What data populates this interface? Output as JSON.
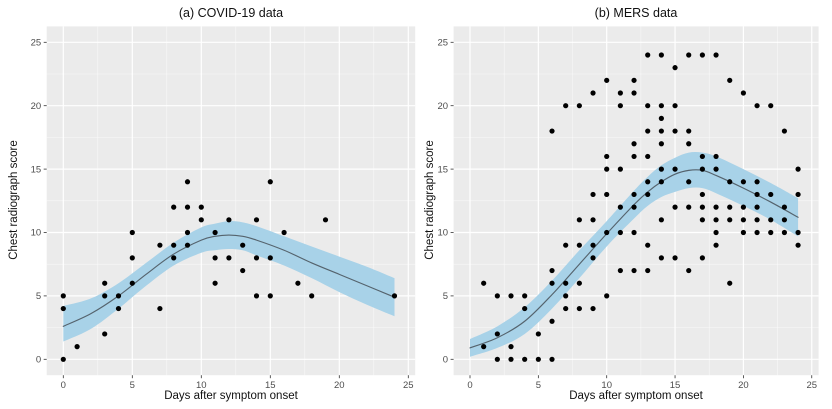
{
  "figure": {
    "background": "#ffffff"
  },
  "chart_data": [
    {
      "id": "covid",
      "type": "scatter",
      "title": "(a) COVID-19 data",
      "xlabel": "Days after symptom onset",
      "ylabel": "Chest radiograph score",
      "xlim": [
        -1.2,
        25.5
      ],
      "ylim": [
        -1.25,
        26.25
      ],
      "xticks": [
        0,
        5,
        10,
        15,
        20,
        25
      ],
      "yticks": [
        0,
        5,
        10,
        15,
        20,
        25
      ],
      "grid": "white major and minor on gray panel",
      "legend": "none",
      "panel_bg": "#ebebeb",
      "grid_color": "#ffffff",
      "point_color": "#000000",
      "smooth_line_color": "#55636d",
      "ribbon_color": "#a8d2e8",
      "points": [
        [
          0,
          0
        ],
        [
          0,
          4
        ],
        [
          0,
          5
        ],
        [
          1,
          1
        ],
        [
          3,
          2
        ],
        [
          3,
          5
        ],
        [
          3,
          6
        ],
        [
          4,
          4
        ],
        [
          4,
          5
        ],
        [
          5,
          6
        ],
        [
          5,
          8
        ],
        [
          5,
          10
        ],
        [
          7,
          4
        ],
        [
          7,
          9
        ],
        [
          8,
          8
        ],
        [
          8,
          9
        ],
        [
          8,
          12
        ],
        [
          9,
          9
        ],
        [
          9,
          10
        ],
        [
          9,
          12
        ],
        [
          9,
          14
        ],
        [
          10,
          11
        ],
        [
          10,
          12
        ],
        [
          11,
          6
        ],
        [
          11,
          8
        ],
        [
          11,
          10
        ],
        [
          12,
          8
        ],
        [
          12,
          11
        ],
        [
          13,
          7
        ],
        [
          13,
          9
        ],
        [
          14,
          5
        ],
        [
          14,
          8
        ],
        [
          14,
          11
        ],
        [
          15,
          5
        ],
        [
          15,
          8
        ],
        [
          15,
          14
        ],
        [
          16,
          10
        ],
        [
          17,
          6
        ],
        [
          18,
          5
        ],
        [
          19,
          11
        ],
        [
          24,
          5
        ]
      ],
      "smooth": {
        "x": [
          0,
          2,
          4,
          6,
          8,
          10,
          11,
          12,
          13,
          14,
          16,
          18,
          20,
          22,
          24
        ],
        "line": [
          2.6,
          3.6,
          5.0,
          6.7,
          8.3,
          9.4,
          9.7,
          9.8,
          9.7,
          9.4,
          8.6,
          7.6,
          6.7,
          5.8,
          4.9
        ],
        "upper": [
          4.2,
          4.8,
          6.0,
          7.6,
          9.2,
          10.4,
          10.7,
          10.9,
          10.8,
          10.5,
          9.7,
          8.9,
          8.1,
          7.3,
          6.4
        ],
        "lower": [
          1.4,
          2.4,
          4.0,
          5.8,
          7.4,
          8.4,
          8.6,
          8.7,
          8.6,
          8.2,
          7.4,
          6.4,
          5.3,
          4.3,
          3.4
        ]
      }
    },
    {
      "id": "mers",
      "type": "scatter",
      "title": "(b) MERS data",
      "xlabel": "Days after symptom onset",
      "ylabel": "Chest radiograph score",
      "xlim": [
        -1.2,
        25.5
      ],
      "ylim": [
        -1.25,
        26.25
      ],
      "xticks": [
        0,
        5,
        10,
        15,
        20,
        25
      ],
      "yticks": [
        0,
        5,
        10,
        15,
        20,
        25
      ],
      "grid": "white major and minor on gray panel",
      "legend": "none",
      "panel_bg": "#ebebeb",
      "grid_color": "#ffffff",
      "point_color": "#000000",
      "smooth_line_color": "#55636d",
      "ribbon_color": "#a8d2e8",
      "points": [
        [
          2,
          0
        ],
        [
          3,
          0
        ],
        [
          4,
          0
        ],
        [
          5,
          0
        ],
        [
          6,
          0
        ],
        [
          1,
          1
        ],
        [
          3,
          1
        ],
        [
          2,
          2
        ],
        [
          5,
          2
        ],
        [
          6,
          3
        ],
        [
          4,
          4
        ],
        [
          7,
          4
        ],
        [
          8,
          4
        ],
        [
          9,
          4
        ],
        [
          2,
          5
        ],
        [
          3,
          5
        ],
        [
          4,
          5
        ],
        [
          7,
          5
        ],
        [
          10,
          5
        ],
        [
          1,
          6
        ],
        [
          6,
          6
        ],
        [
          7,
          6
        ],
        [
          8,
          6
        ],
        [
          19,
          6
        ],
        [
          6,
          7
        ],
        [
          11,
          7
        ],
        [
          12,
          7
        ],
        [
          13,
          7
        ],
        [
          16,
          7
        ],
        [
          9,
          8
        ],
        [
          14,
          8
        ],
        [
          15,
          8
        ],
        [
          17,
          8
        ],
        [
          7,
          9
        ],
        [
          8,
          9
        ],
        [
          9,
          9
        ],
        [
          13,
          9
        ],
        [
          18,
          9
        ],
        [
          24,
          9
        ],
        [
          10,
          10
        ],
        [
          11,
          10
        ],
        [
          12,
          10
        ],
        [
          18,
          10
        ],
        [
          20,
          10
        ],
        [
          21,
          10
        ],
        [
          22,
          10
        ],
        [
          23,
          10
        ],
        [
          24,
          10
        ],
        [
          8,
          11
        ],
        [
          9,
          11
        ],
        [
          14,
          11
        ],
        [
          17,
          11
        ],
        [
          18,
          11
        ],
        [
          19,
          11
        ],
        [
          20,
          11
        ],
        [
          21,
          11
        ],
        [
          22,
          11
        ],
        [
          23,
          11
        ],
        [
          11,
          12
        ],
        [
          12,
          12
        ],
        [
          15,
          12
        ],
        [
          16,
          12
        ],
        [
          17,
          12
        ],
        [
          18,
          12
        ],
        [
          19,
          12
        ],
        [
          20,
          12
        ],
        [
          21,
          12
        ],
        [
          23,
          12
        ],
        [
          9,
          13
        ],
        [
          10,
          13
        ],
        [
          12,
          13
        ],
        [
          13,
          13
        ],
        [
          17,
          13
        ],
        [
          21,
          13
        ],
        [
          22,
          13
        ],
        [
          24,
          13
        ],
        [
          13,
          14
        ],
        [
          14,
          14
        ],
        [
          16,
          14
        ],
        [
          19,
          14
        ],
        [
          20,
          14
        ],
        [
          21,
          14
        ],
        [
          10,
          15
        ],
        [
          11,
          15
        ],
        [
          14,
          15
        ],
        [
          15,
          15
        ],
        [
          17,
          15
        ],
        [
          18,
          15
        ],
        [
          24,
          15
        ],
        [
          10,
          16
        ],
        [
          12,
          16
        ],
        [
          13,
          16
        ],
        [
          17,
          16
        ],
        [
          18,
          16
        ],
        [
          12,
          17
        ],
        [
          14,
          17
        ],
        [
          16,
          17
        ],
        [
          6,
          18
        ],
        [
          13,
          18
        ],
        [
          14,
          18
        ],
        [
          15,
          18
        ],
        [
          16,
          18
        ],
        [
          23,
          18
        ],
        [
          14,
          19
        ],
        [
          7,
          20
        ],
        [
          8,
          20
        ],
        [
          11,
          20
        ],
        [
          13,
          20
        ],
        [
          14,
          20
        ],
        [
          15,
          20
        ],
        [
          21,
          20
        ],
        [
          22,
          20
        ],
        [
          9,
          21
        ],
        [
          11,
          21
        ],
        [
          12,
          21
        ],
        [
          20,
          21
        ],
        [
          10,
          22
        ],
        [
          12,
          22
        ],
        [
          19,
          22
        ],
        [
          15,
          23
        ],
        [
          13,
          24
        ],
        [
          14,
          24
        ],
        [
          16,
          24
        ],
        [
          17,
          24
        ],
        [
          18,
          24
        ]
      ],
      "smooth": {
        "x": [
          0,
          2,
          4,
          6,
          8,
          10,
          12,
          13,
          14,
          15,
          16,
          17,
          18,
          20,
          22,
          24
        ],
        "line": [
          0.9,
          1.7,
          3.0,
          5.1,
          7.5,
          9.9,
          12.2,
          13.2,
          14.0,
          14.6,
          14.9,
          14.9,
          14.5,
          13.5,
          12.4,
          11.2
        ],
        "upper": [
          1.6,
          2.6,
          4.1,
          6.2,
          8.6,
          10.9,
          13.3,
          14.4,
          15.3,
          15.9,
          16.3,
          16.3,
          16.0,
          15.0,
          13.9,
          12.7
        ],
        "lower": [
          0.2,
          0.9,
          2.0,
          4.0,
          6.4,
          8.9,
          11.1,
          12.1,
          12.8,
          13.2,
          13.5,
          13.5,
          13.1,
          12.1,
          11.0,
          9.7
        ]
      }
    }
  ]
}
